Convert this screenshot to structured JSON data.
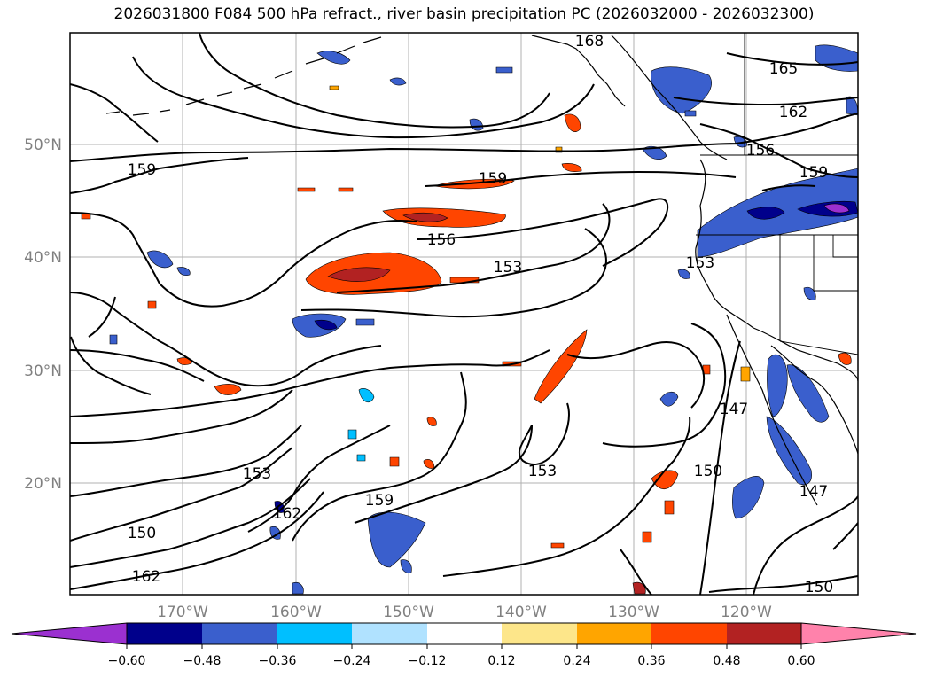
{
  "title": "2026031800 F084 500 hPa refract., river basin precipitation PC (2026032000 - 2026032300)",
  "map": {
    "lat_labels": [
      "50°N",
      "40°N",
      "30°N",
      "20°N"
    ],
    "lon_labels": [
      "170°W",
      "160°W",
      "150°W",
      "140°W",
      "130°W",
      "120°W"
    ],
    "contour_labels": [
      "168",
      "165",
      "162",
      "159",
      "156",
      "159",
      "156",
      "153",
      "153",
      "159",
      "147",
      "150",
      "153",
      "153",
      "162",
      "159",
      "150",
      "162",
      "147",
      "150"
    ]
  },
  "colorbar": {
    "ticks": [
      "−0.60",
      "−0.48",
      "−0.36",
      "−0.24",
      "−0.12",
      "0.12",
      "0.24",
      "0.36",
      "0.48",
      "0.60"
    ],
    "colors": [
      "#9b30d0",
      "#00008b",
      "#3a5fcd",
      "#00bfff",
      "#b0e2ff",
      "#ffffff",
      "#fde68a",
      "#ffa500",
      "#ff4500",
      "#b22222",
      "#ff82ab"
    ]
  }
}
